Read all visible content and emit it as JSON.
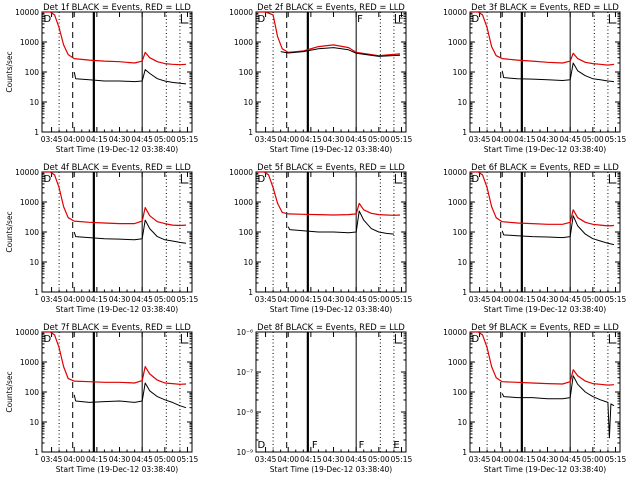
{
  "start_time_label": "Start Time (19-Dec-12 03:38:40)",
  "colors": {
    "events": "#000000",
    "lld": "#e00000"
  },
  "chart_data": [
    {
      "type": "line",
      "panel": 1,
      "title": "Det 1f BLACK = Events, RED = LLD",
      "xlabel": "Start Time (19-Dec-12 03:38:40)",
      "ylabel": "Counts/sec",
      "scale": "log",
      "ylim": [
        1,
        10000
      ],
      "yticks": [
        "1",
        "10",
        "100",
        "1000",
        "10000"
      ],
      "xticks": [
        "03:45",
        "04:00",
        "04:15",
        "04:30",
        "04:45",
        "05:00",
        "05:15"
      ],
      "xlim": [
        "03:38:40",
        "05:18:00"
      ],
      "marker_text": [
        "D"
      ],
      "series": [
        {
          "color": "#e00000",
          "x": [
            "03:40",
            "03:44",
            "03:47",
            "03:50",
            "03:53",
            "03:56",
            "04:00",
            "04:10",
            "04:20",
            "04:30",
            "04:40",
            "04:45",
            "04:47",
            "04:50",
            "04:55",
            "05:00",
            "05:05",
            "05:10",
            "05:14"
          ],
          "values": [
            10000,
            10000,
            8000,
            3000,
            800,
            380,
            280,
            250,
            230,
            220,
            200,
            230,
            450,
            300,
            220,
            190,
            180,
            175,
            180
          ]
        },
        {
          "color": "#000000",
          "x": [
            "04:00",
            "04:01",
            "04:10",
            "04:20",
            "04:30",
            "04:40",
            "04:45",
            "04:47",
            "04:50",
            "04:55",
            "05:00",
            "05:05",
            "05:10",
            "05:14"
          ],
          "values": [
            100,
            60,
            55,
            50,
            50,
            48,
            50,
            120,
            90,
            60,
            50,
            45,
            42,
            40
          ]
        }
      ]
    },
    {
      "type": "line",
      "panel": 2,
      "title": "Det 2f BLACK = Events, RED = LLD",
      "xlabel": "Start Time (19-Dec-12 03:38:40)",
      "ylabel": "",
      "scale": "log",
      "ylim": [
        1,
        10000
      ],
      "yticks": [
        "1",
        "10",
        "100",
        "1000",
        "10000"
      ],
      "xticks": [
        "03:45",
        "04:00",
        "04:15",
        "04:30",
        "04:45",
        "05:00",
        "05:15"
      ],
      "xlim": [
        "03:38:40",
        "05:18:00"
      ],
      "marker_text": [
        "D",
        "F",
        "F"
      ],
      "series": [
        {
          "color": "#e00000",
          "x": [
            "03:40",
            "03:45",
            "03:50",
            "03:53",
            "03:56",
            "04:00",
            "04:10",
            "04:20",
            "04:30",
            "04:40",
            "04:45",
            "05:00",
            "05:14"
          ],
          "values": [
            10000,
            10000,
            8000,
            1500,
            600,
            450,
            500,
            700,
            800,
            650,
            450,
            350,
            400
          ]
        },
        {
          "color": "#000000",
          "x": [
            "03:55",
            "04:00",
            "04:10",
            "04:20",
            "04:30",
            "04:40",
            "04:45",
            "05:00",
            "05:14"
          ],
          "values": [
            480,
            430,
            480,
            600,
            650,
            550,
            420,
            330,
            360
          ]
        }
      ]
    },
    {
      "type": "line",
      "panel": 3,
      "title": "Det 3f BLACK = Events, RED = LLD",
      "xlabel": "Start Time (19-Dec-12 03:38:40)",
      "ylabel": "",
      "scale": "log",
      "ylim": [
        1,
        10000
      ],
      "yticks": [
        "1",
        "10",
        "100",
        "1000",
        "10000"
      ],
      "xticks": [
        "03:45",
        "04:00",
        "04:15",
        "04:30",
        "04:45",
        "05:00",
        "05:15"
      ],
      "xlim": [
        "03:38:40",
        "05:18:00"
      ],
      "marker_text": [
        "D"
      ],
      "series": [
        {
          "color": "#e00000",
          "x": [
            "03:40",
            "03:44",
            "03:47",
            "03:50",
            "03:53",
            "03:56",
            "04:00",
            "04:10",
            "04:20",
            "04:30",
            "04:40",
            "04:45",
            "04:47",
            "04:50",
            "04:55",
            "05:00",
            "05:05",
            "05:10",
            "05:14"
          ],
          "values": [
            10000,
            10000,
            8000,
            3000,
            700,
            350,
            280,
            250,
            230,
            210,
            200,
            230,
            420,
            280,
            210,
            190,
            180,
            170,
            180
          ]
        },
        {
          "color": "#000000",
          "x": [
            "04:00",
            "04:01",
            "04:10",
            "04:20",
            "04:30",
            "04:40",
            "04:45",
            "04:47",
            "04:50",
            "04:55",
            "05:00",
            "05:05",
            "05:10",
            "05:14"
          ],
          "values": [
            110,
            65,
            60,
            58,
            55,
            52,
            55,
            200,
            110,
            75,
            60,
            55,
            50,
            48
          ]
        }
      ]
    },
    {
      "type": "line",
      "panel": 4,
      "title": "Det 4f BLACK = Events, RED = LLD",
      "xlabel": "Start Time (19-Dec-12 03:38:40)",
      "ylabel": "Counts/sec",
      "scale": "log",
      "ylim": [
        1,
        10000
      ],
      "yticks": [
        "1",
        "10",
        "100",
        "1000",
        "10000"
      ],
      "xticks": [
        "03:45",
        "04:00",
        "04:15",
        "04:30",
        "04:45",
        "05:00",
        "05:15"
      ],
      "xlim": [
        "03:38:40",
        "05:18:00"
      ],
      "marker_text": [
        "D"
      ],
      "series": [
        {
          "color": "#e00000",
          "x": [
            "03:40",
            "03:44",
            "03:47",
            "03:50",
            "03:53",
            "03:56",
            "04:00",
            "04:10",
            "04:20",
            "04:30",
            "04:40",
            "04:45",
            "04:47",
            "04:50",
            "04:55",
            "05:00",
            "05:05",
            "05:10",
            "05:14"
          ],
          "values": [
            10000,
            10000,
            8000,
            3000,
            700,
            300,
            230,
            210,
            200,
            190,
            190,
            230,
            650,
            350,
            220,
            190,
            170,
            165,
            170
          ]
        },
        {
          "color": "#000000",
          "x": [
            "04:00",
            "04:01",
            "04:10",
            "04:20",
            "04:30",
            "04:40",
            "04:45",
            "04:47",
            "04:50",
            "04:55",
            "05:00",
            "05:05",
            "05:10",
            "05:14"
          ],
          "values": [
            100,
            70,
            65,
            60,
            58,
            55,
            60,
            250,
            130,
            70,
            55,
            50,
            45,
            42
          ]
        }
      ]
    },
    {
      "type": "line",
      "panel": 5,
      "title": "Det 5f BLACK = Events, RED = LLD",
      "xlabel": "Start Time (19-Dec-12 03:38:40)",
      "ylabel": "",
      "scale": "log",
      "ylim": [
        1,
        10000
      ],
      "yticks": [
        "1",
        "10",
        "100",
        "1000",
        "10000"
      ],
      "xticks": [
        "03:45",
        "04:00",
        "04:15",
        "04:30",
        "04:45",
        "05:00",
        "05:15"
      ],
      "xlim": [
        "03:38:40",
        "05:18:00"
      ],
      "marker_text": [
        "D"
      ],
      "series": [
        {
          "color": "#e00000",
          "x": [
            "03:40",
            "03:44",
            "03:47",
            "03:50",
            "03:53",
            "03:56",
            "04:00",
            "04:10",
            "04:20",
            "04:30",
            "04:40",
            "04:45",
            "04:47",
            "04:50",
            "04:55",
            "05:00",
            "05:05",
            "05:10",
            "05:14"
          ],
          "values": [
            10000,
            10000,
            8000,
            3000,
            900,
            450,
            400,
            390,
            380,
            370,
            380,
            400,
            900,
            550,
            420,
            380,
            370,
            360,
            370
          ]
        },
        {
          "color": "#000000",
          "x": [
            "04:00",
            "04:01",
            "04:10",
            "04:20",
            "04:30",
            "04:40",
            "04:45",
            "04:47",
            "04:50",
            "04:55",
            "05:00",
            "05:05",
            "05:10"
          ],
          "values": [
            150,
            120,
            110,
            100,
            100,
            95,
            100,
            500,
            250,
            130,
            100,
            90,
            85
          ]
        }
      ]
    },
    {
      "type": "line",
      "panel": 6,
      "title": "Det 6f BLACK = Events, RED = LLD",
      "xlabel": "Start Time (19-Dec-12 03:38:40)",
      "ylabel": "",
      "scale": "log",
      "ylim": [
        1,
        10000
      ],
      "yticks": [
        "1",
        "10",
        "100",
        "1000",
        "10000"
      ],
      "xticks": [
        "03:45",
        "04:00",
        "04:15",
        "04:30",
        "04:45",
        "05:00",
        "05:15"
      ],
      "xlim": [
        "03:38:40",
        "05:18:00"
      ],
      "marker_text": [
        "D"
      ],
      "series": [
        {
          "color": "#e00000",
          "x": [
            "03:40",
            "03:44",
            "03:47",
            "03:50",
            "03:53",
            "03:56",
            "04:00",
            "04:10",
            "04:20",
            "04:30",
            "04:40",
            "04:45",
            "04:47",
            "04:50",
            "04:55",
            "05:00",
            "05:05",
            "05:10",
            "05:14"
          ],
          "values": [
            10000,
            10000,
            8000,
            3000,
            700,
            300,
            220,
            200,
            190,
            180,
            180,
            210,
            550,
            300,
            210,
            180,
            170,
            160,
            165
          ]
        },
        {
          "color": "#000000",
          "x": [
            "04:00",
            "04:01",
            "04:10",
            "04:20",
            "04:30",
            "04:40",
            "04:45",
            "04:47",
            "04:50",
            "04:55",
            "05:00",
            "05:05",
            "05:10",
            "05:14"
          ],
          "values": [
            110,
            80,
            75,
            70,
            68,
            65,
            70,
            350,
            160,
            85,
            60,
            50,
            42,
            38
          ]
        }
      ]
    },
    {
      "type": "line",
      "panel": 7,
      "title": "Det 7f BLACK = Events, RED = LLD",
      "xlabel": "Start Time (19-Dec-12 03:38:40)",
      "ylabel": "Counts/sec",
      "scale": "log",
      "ylim": [
        1,
        10000
      ],
      "yticks": [
        "1",
        "10",
        "100",
        "1000",
        "10000"
      ],
      "xticks": [
        "03:45",
        "04:00",
        "04:15",
        "04:30",
        "04:45",
        "05:00",
        "05:15"
      ],
      "xlim": [
        "03:38:40",
        "05:18:00"
      ],
      "marker_text": [
        "D"
      ],
      "series": [
        {
          "color": "#e00000",
          "x": [
            "03:40",
            "03:44",
            "03:47",
            "03:50",
            "03:53",
            "03:56",
            "04:00",
            "04:10",
            "04:20",
            "04:30",
            "04:40",
            "04:45",
            "04:47",
            "04:50",
            "04:55",
            "05:00",
            "05:05",
            "05:10",
            "05:14"
          ],
          "values": [
            10000,
            10000,
            8000,
            3000,
            700,
            280,
            230,
            220,
            210,
            210,
            200,
            240,
            700,
            400,
            250,
            200,
            190,
            180,
            185
          ]
        },
        {
          "color": "#000000",
          "x": [
            "04:00",
            "04:01",
            "04:10",
            "04:20",
            "04:30",
            "04:40",
            "04:45",
            "04:47",
            "04:50",
            "04:55",
            "05:00",
            "05:05",
            "05:10",
            "05:14"
          ],
          "values": [
            80,
            50,
            45,
            48,
            50,
            45,
            50,
            200,
            110,
            70,
            55,
            45,
            35,
            30
          ]
        }
      ]
    },
    {
      "type": "line",
      "panel": 8,
      "title": "Det 8f BLACK = Events, RED = LLD",
      "xlabel": "Start Time (19-Dec-12 03:38:40)",
      "ylabel": "",
      "scale": "log",
      "ylim": [
        1e-09,
        1e-06
      ],
      "yticks": [
        "10⁻⁹",
        "10⁻⁸",
        "10⁻⁷",
        "10⁻⁶"
      ],
      "xticks": [
        "03:45",
        "04:00",
        "04:15",
        "04:30",
        "04:45",
        "05:00",
        "05:15"
      ],
      "xlim": [
        "03:38:40",
        "05:18:00"
      ],
      "marker_text": [
        "D",
        "F",
        "F",
        "E"
      ],
      "series": []
    },
    {
      "type": "line",
      "panel": 9,
      "title": "Det 9f BLACK = Events, RED = LLD",
      "xlabel": "Start Time (19-Dec-12 03:38:40)",
      "ylabel": "",
      "scale": "log",
      "ylim": [
        1,
        10000
      ],
      "yticks": [
        "1",
        "10",
        "100",
        "1000",
        "10000"
      ],
      "xticks": [
        "03:45",
        "04:00",
        "04:15",
        "04:30",
        "04:45",
        "05:00",
        "05:15"
      ],
      "xlim": [
        "03:38:40",
        "05:18:00"
      ],
      "marker_text": [
        "D"
      ],
      "series": [
        {
          "color": "#e00000",
          "x": [
            "03:40",
            "03:44",
            "03:47",
            "03:50",
            "03:53",
            "03:56",
            "04:00",
            "04:10",
            "04:20",
            "04:30",
            "04:40",
            "04:45",
            "04:47",
            "04:50",
            "04:55",
            "05:00",
            "05:05",
            "05:10",
            "05:14"
          ],
          "values": [
            10000,
            10000,
            8000,
            3000,
            700,
            300,
            220,
            210,
            200,
            190,
            185,
            220,
            550,
            350,
            230,
            190,
            180,
            170,
            175
          ]
        },
        {
          "color": "#000000",
          "x": [
            "04:00",
            "04:01",
            "04:10",
            "04:20",
            "04:30",
            "04:40",
            "04:45",
            "04:47",
            "04:50",
            "04:55",
            "05:00",
            "05:05",
            "05:10",
            "05:11",
            "05:12",
            "05:14"
          ],
          "values": [
            90,
            70,
            65,
            65,
            60,
            60,
            65,
            350,
            180,
            100,
            70,
            55,
            45,
            3,
            40,
            35
          ]
        }
      ]
    }
  ]
}
